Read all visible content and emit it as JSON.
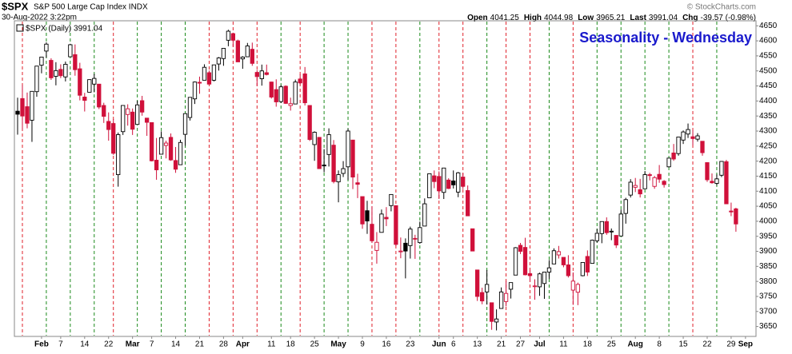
{
  "header": {
    "symbol": "$SPX",
    "name": "S&P 500 Large Cap Index INDX",
    "timestamp": "30-Aug-2022 3:22pm",
    "quote": [
      {
        "label": "Open",
        "value": "4041.25"
      },
      {
        "label": "High",
        "value": "4044.98"
      },
      {
        "label": "Low",
        "value": "3965.21"
      },
      {
        "label": "Last",
        "value": "3991.04"
      },
      {
        "label": "Chg",
        "value": "-39.57 (-0.98%)"
      }
    ],
    "copyright": "© StockCharts.com"
  },
  "chart_data": {
    "type": "candlestick",
    "title": "Seasonality - Wednesday",
    "legend": "$SPX (Daily) 3991.04",
    "up_color": "#000000",
    "down_color": "#d0103a",
    "title_color": "#1a1acc",
    "line_up_color": "#1a8a1a",
    "line_down_color": "#e0202a",
    "ylim": [
      3625,
      4672
    ],
    "yticks": [
      3650,
      3700,
      3750,
      3800,
      3850,
      3900,
      3950,
      4000,
      4050,
      4100,
      4150,
      4200,
      4250,
      4300,
      4350,
      4400,
      4450,
      4500,
      4550,
      4600,
      4650
    ],
    "categories": [
      null,
      null,
      null,
      null,
      null,
      "Feb",
      null,
      null,
      null,
      "7",
      null,
      null,
      null,
      null,
      "14",
      null,
      null,
      null,
      null,
      "22",
      null,
      null,
      null,
      null,
      "Mar",
      null,
      null,
      null,
      "7",
      null,
      null,
      null,
      null,
      "14",
      null,
      null,
      null,
      null,
      "21",
      null,
      null,
      null,
      null,
      "28",
      null,
      null,
      null,
      "Apr",
      null,
      null,
      null,
      null,
      null,
      "11",
      null,
      null,
      null,
      "18",
      null,
      null,
      null,
      null,
      "25",
      null,
      null,
      null,
      null,
      "May",
      null,
      null,
      null,
      null,
      "9",
      null,
      null,
      null,
      null,
      "16",
      null,
      null,
      null,
      null,
      "23",
      null,
      null,
      null,
      null,
      null,
      "Jun",
      null,
      null,
      "6",
      null,
      null,
      null,
      null,
      "13",
      null,
      null,
      null,
      null,
      "21",
      null,
      null,
      null,
      "27",
      null,
      null,
      null,
      "Jul",
      null,
      null,
      null,
      null,
      "11",
      null,
      null,
      null,
      null,
      "18",
      null,
      null,
      null,
      null,
      "25",
      null,
      null,
      null,
      null,
      "Aug",
      null,
      null,
      null,
      null,
      "8",
      null,
      null,
      null,
      null,
      "15",
      null,
      null,
      null,
      null,
      "22",
      null,
      null,
      null,
      null,
      "29",
      null,
      null,
      "Sep"
    ],
    "wednesdays": [
      1,
      6,
      11,
      16,
      20,
      25,
      30,
      35,
      40,
      45,
      50,
      55,
      59,
      64,
      69,
      74,
      79,
      84,
      88,
      93,
      98,
      102,
      107,
      111,
      116,
      121,
      126,
      131,
      136,
      141,
      146
    ],
    "ohlc": [
      [
        4366,
        4411,
        4288,
        4356
      ],
      [
        4408,
        4453,
        4304,
        4350
      ],
      [
        4381,
        4428,
        4309,
        4326
      ],
      [
        4336,
        4432,
        4264,
        4432
      ],
      [
        4431,
        4516,
        4414,
        4516
      ],
      [
        4519,
        4547,
        4492,
        4546
      ],
      [
        4566,
        4595,
        4544,
        4589
      ],
      [
        4535,
        4542,
        4470,
        4477
      ],
      [
        4482,
        4529,
        4452,
        4501
      ],
      [
        4505,
        4522,
        4476,
        4484
      ],
      [
        4480,
        4531,
        4465,
        4522
      ],
      [
        4547,
        4590,
        4547,
        4587
      ],
      [
        4554,
        4588,
        4484,
        4504
      ],
      [
        4507,
        4527,
        4402,
        4419
      ],
      [
        4413,
        4427,
        4365,
        4402
      ],
      [
        4429,
        4472,
        4429,
        4471
      ],
      [
        4456,
        4490,
        4429,
        4475
      ],
      [
        4456,
        4456,
        4373,
        4380
      ],
      [
        4385,
        4394,
        4327,
        4349
      ],
      [
        4332,
        4362,
        4268,
        4305
      ],
      [
        4325,
        4340,
        4221,
        4226
      ],
      [
        4155,
        4295,
        4115,
        4288
      ],
      [
        4298,
        4385,
        4287,
        4385
      ],
      [
        4355,
        4389,
        4318,
        4374
      ],
      [
        4363,
        4375,
        4287,
        4306
      ],
      [
        4322,
        4401,
        4322,
        4387
      ],
      [
        4401,
        4417,
        4351,
        4363
      ],
      [
        4343,
        4343,
        4284,
        4329
      ],
      [
        4328,
        4328,
        4199,
        4201
      ],
      [
        4203,
        4277,
        4138,
        4171
      ],
      [
        4223,
        4299,
        4223,
        4278
      ],
      [
        4252,
        4268,
        4209,
        4260
      ],
      [
        4279,
        4292,
        4201,
        4204
      ],
      [
        4202,
        4247,
        4161,
        4173
      ],
      [
        4188,
        4271,
        4188,
        4262
      ],
      [
        4289,
        4358,
        4251,
        4358
      ],
      [
        4345,
        4412,
        4335,
        4412
      ],
      [
        4407,
        4465,
        4390,
        4463
      ],
      [
        4462,
        4481,
        4424,
        4461
      ],
      [
        4469,
        4522,
        4469,
        4512
      ],
      [
        4494,
        4501,
        4455,
        4456
      ],
      [
        4469,
        4520,
        4465,
        4520
      ],
      [
        4523,
        4546,
        4501,
        4543
      ],
      [
        4541,
        4575,
        4517,
        4575
      ],
      [
        4602,
        4637,
        4582,
        4632
      ],
      [
        4624,
        4627,
        4581,
        4602
      ],
      [
        4600,
        4604,
        4530,
        4530
      ],
      [
        4540,
        4549,
        4507,
        4546
      ],
      [
        4547,
        4593,
        4546,
        4583
      ],
      [
        4572,
        4594,
        4517,
        4525
      ],
      [
        4495,
        4503,
        4450,
        4481
      ],
      [
        4474,
        4521,
        4451,
        4500
      ],
      [
        4494,
        4521,
        4485,
        4488
      ],
      [
        4463,
        4464,
        4408,
        4413
      ],
      [
        4438,
        4472,
        4381,
        4397
      ],
      [
        4398,
        4453,
        4393,
        4447
      ],
      [
        4449,
        4452,
        4390,
        4392
      ],
      [
        4385,
        4411,
        4368,
        4391
      ],
      [
        4390,
        4471,
        4390,
        4463
      ],
      [
        4473,
        4488,
        4455,
        4460
      ],
      [
        4490,
        4513,
        4385,
        4394
      ],
      [
        4385,
        4386,
        4267,
        4272
      ],
      [
        4255,
        4299,
        4201,
        4296
      ],
      [
        4279,
        4279,
        4175,
        4175
      ],
      [
        4187,
        4240,
        4163,
        4184
      ],
      [
        4222,
        4309,
        4182,
        4288
      ],
      [
        4253,
        4270,
        4126,
        4132
      ],
      [
        4131,
        4169,
        4063,
        4155
      ],
      [
        4159,
        4200,
        4147,
        4175
      ],
      [
        4181,
        4308,
        4137,
        4300
      ],
      [
        4270,
        4270,
        4107,
        4147
      ],
      [
        4128,
        4158,
        4077,
        4123
      ],
      [
        4082,
        4082,
        3975,
        3991
      ],
      [
        4035,
        4068,
        3958,
        4001
      ],
      [
        3990,
        4050,
        3928,
        3935
      ],
      [
        3903,
        3964,
        3859,
        3930
      ],
      [
        3963,
        4039,
        3963,
        4024
      ],
      [
        4013,
        4047,
        3984,
        4008
      ],
      [
        4052,
        4090,
        4033,
        4089
      ],
      [
        4052,
        4052,
        3917,
        3923
      ],
      [
        3899,
        3946,
        3877,
        3901
      ],
      [
        3927,
        3943,
        3810,
        3901
      ],
      [
        3919,
        3982,
        3876,
        3974
      ],
      [
        3943,
        3955,
        3875,
        3941
      ],
      [
        3929,
        3999,
        3925,
        3979
      ],
      [
        3984,
        4076,
        3984,
        4058
      ],
      [
        4078,
        4158,
        4077,
        4158
      ],
      [
        4151,
        4169,
        4110,
        4132
      ],
      [
        4149,
        4166,
        4074,
        4101
      ],
      [
        4096,
        4177,
        4074,
        4177
      ],
      [
        4137,
        4143,
        4107,
        4109
      ],
      [
        4134,
        4169,
        4109,
        4121
      ],
      [
        4097,
        4164,
        4080,
        4161
      ],
      [
        4147,
        4160,
        4107,
        4116
      ],
      [
        4102,
        4119,
        4017,
        4018
      ],
      [
        3975,
        3975,
        3900,
        3901
      ],
      [
        3838,
        3838,
        3735,
        3750
      ],
      [
        3763,
        3779,
        3724,
        3735
      ],
      [
        3765,
        3838,
        3723,
        3790
      ],
      [
        3729,
        3729,
        3639,
        3667
      ],
      [
        3665,
        3707,
        3637,
        3675
      ],
      [
        3710,
        3780,
        3710,
        3765
      ],
      [
        3733,
        3801,
        3717,
        3760
      ],
      [
        3774,
        3796,
        3743,
        3796
      ],
      [
        3821,
        3914,
        3821,
        3912
      ],
      [
        3920,
        3928,
        3891,
        3900
      ],
      [
        3913,
        3945,
        3820,
        3822
      ],
      [
        3826,
        3837,
        3800,
        3819
      ],
      [
        3785,
        3807,
        3739,
        3785
      ],
      [
        3782,
        3829,
        3752,
        3825
      ],
      [
        3793,
        3832,
        3742,
        3831
      ],
      [
        3831,
        3871,
        3808,
        3845
      ],
      [
        3858,
        3910,
        3858,
        3902
      ],
      [
        3888,
        3918,
        3876,
        3899
      ],
      [
        3880,
        3880,
        3847,
        3855
      ],
      [
        3855,
        3887,
        3813,
        3819
      ],
      [
        3771,
        3830,
        3722,
        3801
      ],
      [
        3764,
        3796,
        3721,
        3790
      ],
      [
        3819,
        3863,
        3817,
        3863
      ],
      [
        3883,
        3903,
        3818,
        3831
      ],
      [
        3860,
        3939,
        3860,
        3937
      ],
      [
        3935,
        3975,
        3929,
        3960
      ],
      [
        3959,
        3999,
        3927,
        3999
      ],
      [
        3999,
        4013,
        3955,
        3962
      ],
      [
        3965,
        3976,
        3937,
        3967
      ],
      [
        3953,
        3954,
        3911,
        3921
      ],
      [
        3951,
        4039,
        3951,
        4024
      ],
      [
        4026,
        4078,
        3992,
        4072
      ],
      [
        4087,
        4140,
        4079,
        4130
      ],
      [
        4113,
        4144,
        4097,
        4119
      ],
      [
        4105,
        4141,
        4079,
        4091
      ],
      [
        4108,
        4167,
        4108,
        4155
      ],
      [
        4155,
        4161,
        4136,
        4152
      ],
      [
        4116,
        4151,
        4108,
        4145
      ],
      [
        4156,
        4187,
        4128,
        4140
      ],
      [
        4133,
        4137,
        4112,
        4122
      ],
      [
        4181,
        4211,
        4179,
        4210
      ],
      [
        4227,
        4257,
        4201,
        4207
      ],
      [
        4225,
        4280,
        4218,
        4280
      ],
      [
        4270,
        4302,
        4257,
        4297
      ],
      [
        4290,
        4325,
        4277,
        4305
      ],
      [
        4281,
        4303,
        4253,
        4275
      ],
      [
        4273,
        4293,
        4265,
        4284
      ],
      [
        4266,
        4266,
        4218,
        4228
      ],
      [
        4195,
        4196,
        4131,
        4138
      ],
      [
        4133,
        4159,
        4125,
        4128
      ],
      [
        4126,
        4156,
        4119,
        4141
      ],
      [
        4153,
        4200,
        4147,
        4199
      ],
      [
        4198,
        4204,
        4057,
        4058
      ],
      [
        4034,
        4062,
        4017,
        4031
      ],
      [
        4041.25,
        4044.98,
        3965.21,
        3991.04
      ],
      null,
      null
    ]
  }
}
